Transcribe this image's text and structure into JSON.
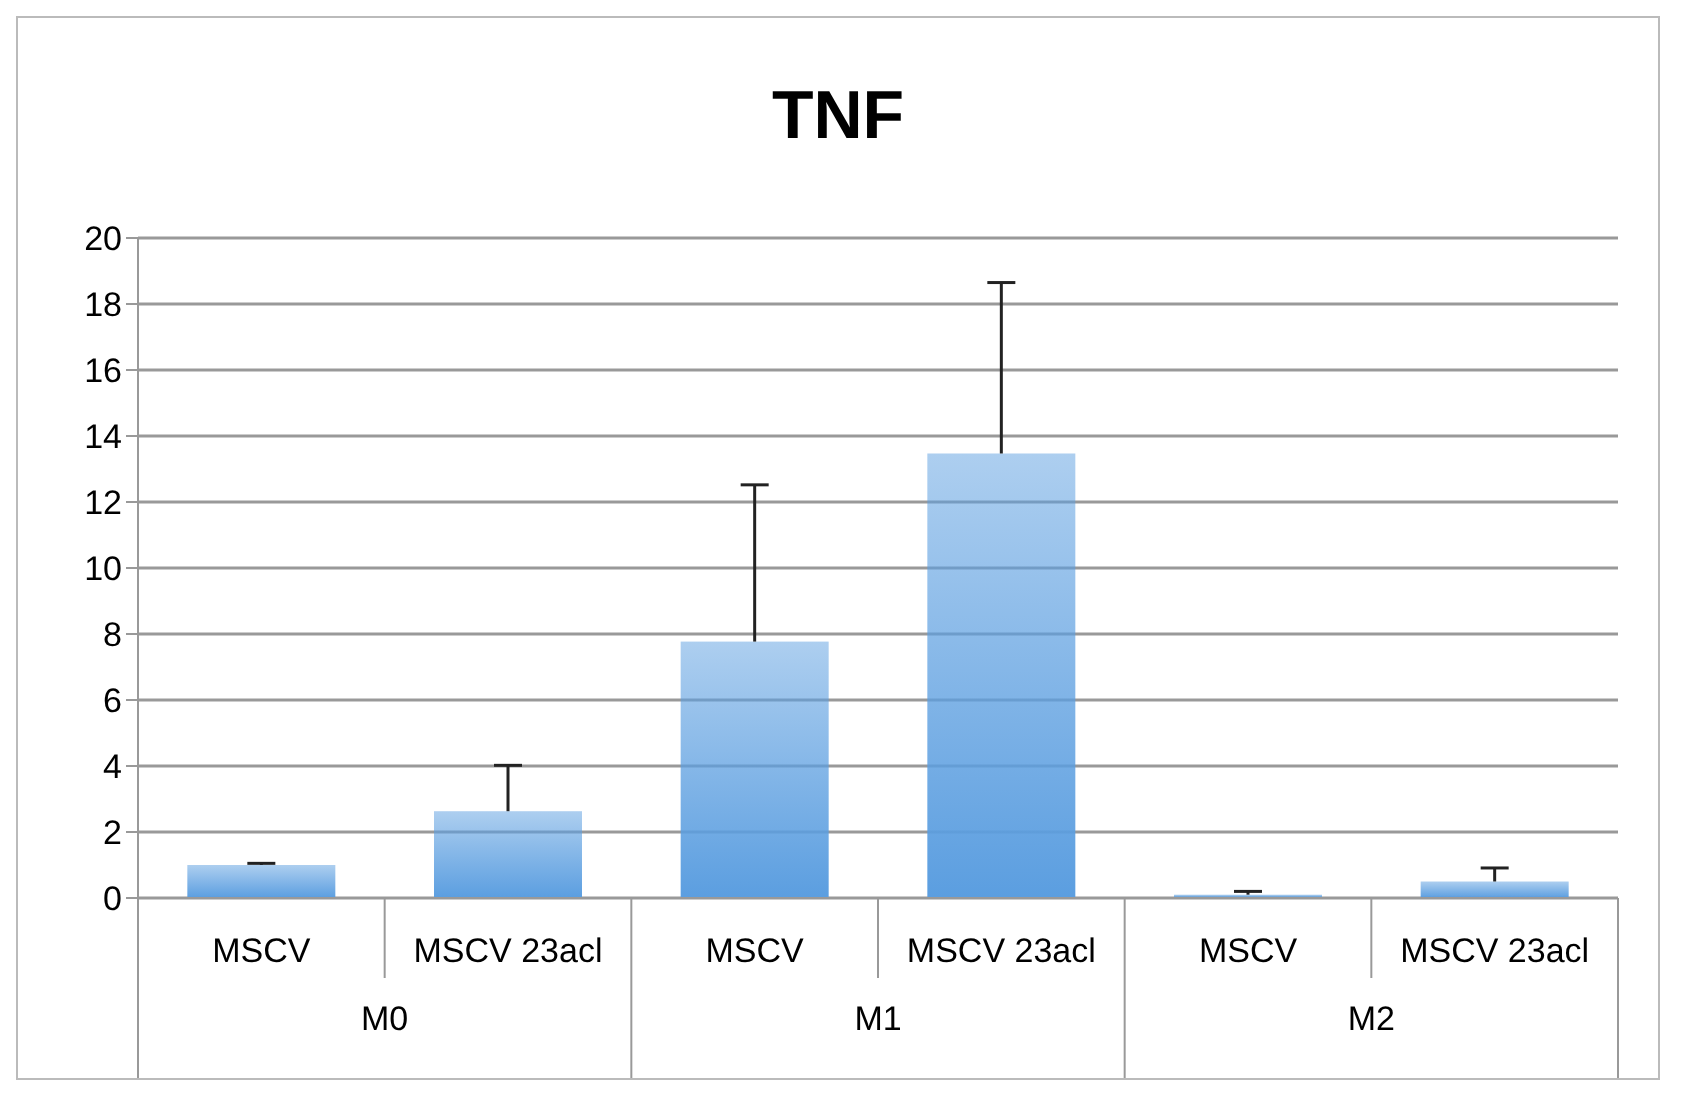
{
  "chart_data": {
    "type": "bar",
    "title": "TNF",
    "categories": [
      "MSCV",
      "MSCV 23acl",
      "MSCV",
      "MSCV 23acl",
      "MSCV",
      "MSCV 23acl"
    ],
    "values": [
      1.0,
      2.63,
      7.77,
      13.47,
      0.1,
      0.5
    ],
    "errors": [
      [
        1.0,
        1.05
      ],
      [
        2.63,
        4.02
      ],
      [
        7.77,
        12.52
      ],
      [
        13.47,
        18.65
      ],
      [
        0.1,
        0.2
      ],
      [
        0.5,
        0.91
      ]
    ],
    "color": "#5b9ee0",
    "ylim": [
      0,
      20
    ],
    "yticks": [
      0,
      2,
      4,
      6,
      8,
      10,
      12,
      14,
      16,
      18,
      20
    ],
    "grid": "y",
    "annotations": [
      "M0",
      "M1",
      "M2"
    ]
  }
}
